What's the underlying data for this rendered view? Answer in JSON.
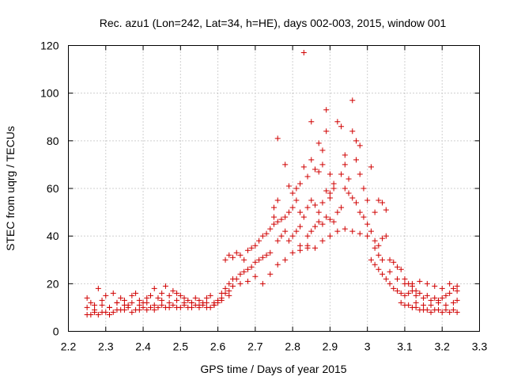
{
  "chart_data": {
    "type": "scatter",
    "title": "Rec. azu1 (Lon=242, Lat=34, h=HE), days 002-003, 2015, window 001",
    "xlabel": "GPS time / Days of year 2015",
    "ylabel": "STEC from uqrg / TECUs",
    "xlim": [
      2.2,
      3.3
    ],
    "ylim": [
      0,
      120
    ],
    "x_ticks": [
      "2.2",
      "2.3",
      "2.4",
      "2.5",
      "2.6",
      "2.7",
      "2.8",
      "2.9",
      "3",
      "3.1",
      "3.2",
      "3.3"
    ],
    "y_ticks": [
      "0",
      "20",
      "40",
      "60",
      "80",
      "100",
      "120"
    ],
    "grid": true,
    "marker": "plus",
    "color": "#d00000",
    "series": [
      {
        "name": "STEC",
        "points": [
          [
            2.25,
            14
          ],
          [
            2.26,
            12
          ],
          [
            2.27,
            11
          ],
          [
            2.28,
            18
          ],
          [
            2.29,
            13
          ],
          [
            2.3,
            15
          ],
          [
            2.31,
            10
          ],
          [
            2.32,
            16
          ],
          [
            2.33,
            12
          ],
          [
            2.34,
            14
          ],
          [
            2.35,
            13
          ],
          [
            2.36,
            11
          ],
          [
            2.37,
            15
          ],
          [
            2.38,
            16
          ],
          [
            2.39,
            13
          ],
          [
            2.4,
            12
          ],
          [
            2.41,
            14
          ],
          [
            2.42,
            15
          ],
          [
            2.43,
            18
          ],
          [
            2.44,
            14
          ],
          [
            2.45,
            16
          ],
          [
            2.46,
            19
          ],
          [
            2.47,
            15
          ],
          [
            2.48,
            17
          ],
          [
            2.49,
            16
          ],
          [
            2.5,
            15
          ],
          [
            2.51,
            14
          ],
          [
            2.52,
            13
          ],
          [
            2.53,
            12
          ],
          [
            2.54,
            14
          ],
          [
            2.55,
            13
          ],
          [
            2.56,
            12
          ],
          [
            2.57,
            14
          ],
          [
            2.58,
            15
          ],
          [
            2.59,
            12
          ],
          [
            2.6,
            13
          ],
          [
            2.61,
            16
          ],
          [
            2.62,
            18
          ],
          [
            2.63,
            20
          ],
          [
            2.64,
            22
          ],
          [
            2.25,
            7
          ],
          [
            2.26,
            7
          ],
          [
            2.27,
            8
          ],
          [
            2.28,
            7
          ],
          [
            2.29,
            8
          ],
          [
            2.3,
            8
          ],
          [
            2.31,
            7
          ],
          [
            2.32,
            8
          ],
          [
            2.33,
            9
          ],
          [
            2.34,
            9
          ],
          [
            2.35,
            9
          ],
          [
            2.36,
            10
          ],
          [
            2.37,
            8
          ],
          [
            2.38,
            9
          ],
          [
            2.39,
            9
          ],
          [
            2.4,
            10
          ],
          [
            2.41,
            9
          ],
          [
            2.42,
            10
          ],
          [
            2.43,
            9
          ],
          [
            2.44,
            10
          ],
          [
            2.45,
            11
          ],
          [
            2.46,
            10
          ],
          [
            2.47,
            10
          ],
          [
            2.48,
            11
          ],
          [
            2.49,
            10
          ],
          [
            2.5,
            10
          ],
          [
            2.51,
            11
          ],
          [
            2.52,
            10
          ],
          [
            2.53,
            10
          ],
          [
            2.54,
            11
          ],
          [
            2.55,
            10
          ],
          [
            2.56,
            11
          ],
          [
            2.57,
            10
          ],
          [
            2.58,
            10
          ],
          [
            2.59,
            11
          ],
          [
            2.6,
            12
          ],
          [
            2.61,
            14
          ],
          [
            2.62,
            16
          ],
          [
            2.63,
            17
          ],
          [
            2.64,
            19
          ],
          [
            2.25,
            10
          ],
          [
            2.27,
            9
          ],
          [
            2.29,
            11
          ],
          [
            2.31,
            10
          ],
          [
            2.33,
            12
          ],
          [
            2.35,
            11
          ],
          [
            2.37,
            12
          ],
          [
            2.39,
            11
          ],
          [
            2.41,
            12
          ],
          [
            2.43,
            11
          ],
          [
            2.45,
            13
          ],
          [
            2.47,
            12
          ],
          [
            2.49,
            13
          ],
          [
            2.51,
            12
          ],
          [
            2.53,
            12
          ],
          [
            2.55,
            11
          ],
          [
            2.57,
            12
          ],
          [
            2.59,
            11
          ],
          [
            2.61,
            13
          ],
          [
            2.63,
            15
          ],
          [
            2.62,
            30
          ],
          [
            2.63,
            32
          ],
          [
            2.64,
            31
          ],
          [
            2.65,
            33
          ],
          [
            2.66,
            32
          ],
          [
            2.67,
            30
          ],
          [
            2.68,
            34
          ],
          [
            2.69,
            35
          ],
          [
            2.7,
            36
          ],
          [
            2.71,
            38
          ],
          [
            2.72,
            40
          ],
          [
            2.73,
            41
          ],
          [
            2.74,
            43
          ],
          [
            2.75,
            45
          ],
          [
            2.76,
            46
          ],
          [
            2.77,
            47
          ],
          [
            2.78,
            48
          ],
          [
            2.79,
            50
          ],
          [
            2.8,
            52
          ],
          [
            2.81,
            55
          ],
          [
            2.65,
            22
          ],
          [
            2.66,
            24
          ],
          [
            2.67,
            25
          ],
          [
            2.68,
            26
          ],
          [
            2.69,
            27
          ],
          [
            2.7,
            29
          ],
          [
            2.71,
            30
          ],
          [
            2.72,
            31
          ],
          [
            2.73,
            32
          ],
          [
            2.74,
            33
          ],
          [
            2.75,
            48
          ],
          [
            2.75,
            52
          ],
          [
            2.76,
            55
          ],
          [
            2.76,
            38
          ],
          [
            2.77,
            40
          ],
          [
            2.78,
            42
          ],
          [
            2.79,
            38
          ],
          [
            2.8,
            40
          ],
          [
            2.81,
            42
          ],
          [
            2.82,
            44
          ],
          [
            2.66,
            20
          ],
          [
            2.68,
            21
          ],
          [
            2.7,
            23
          ],
          [
            2.72,
            20
          ],
          [
            2.74,
            24
          ],
          [
            2.76,
            28
          ],
          [
            2.78,
            30
          ],
          [
            2.8,
            33
          ],
          [
            2.82,
            36
          ],
          [
            2.84,
            35
          ],
          [
            2.76,
            81
          ],
          [
            2.78,
            70
          ],
          [
            2.79,
            61
          ],
          [
            2.8,
            58
          ],
          [
            2.81,
            60
          ],
          [
            2.82,
            62
          ],
          [
            2.83,
            117
          ],
          [
            2.83,
            69
          ],
          [
            2.84,
            65
          ],
          [
            2.85,
            88
          ],
          [
            2.85,
            72
          ],
          [
            2.86,
            68
          ],
          [
            2.87,
            67
          ],
          [
            2.87,
            79
          ],
          [
            2.88,
            76
          ],
          [
            2.88,
            70
          ],
          [
            2.89,
            93
          ],
          [
            2.89,
            84
          ],
          [
            2.9,
            66
          ],
          [
            2.9,
            58
          ],
          [
            2.82,
            50
          ],
          [
            2.83,
            48
          ],
          [
            2.84,
            52
          ],
          [
            2.85,
            55
          ],
          [
            2.86,
            53
          ],
          [
            2.87,
            50
          ],
          [
            2.88,
            54
          ],
          [
            2.89,
            59
          ],
          [
            2.9,
            56
          ],
          [
            2.91,
            62
          ],
          [
            2.84,
            40
          ],
          [
            2.85,
            42
          ],
          [
            2.86,
            44
          ],
          [
            2.87,
            46
          ],
          [
            2.88,
            45
          ],
          [
            2.89,
            48
          ],
          [
            2.9,
            47
          ],
          [
            2.91,
            46
          ],
          [
            2.92,
            50
          ],
          [
            2.93,
            52
          ],
          [
            2.82,
            34
          ],
          [
            2.84,
            36
          ],
          [
            2.86,
            35
          ],
          [
            2.88,
            38
          ],
          [
            2.9,
            40
          ],
          [
            2.92,
            42
          ],
          [
            2.94,
            43
          ],
          [
            2.96,
            42
          ],
          [
            2.98,
            41
          ],
          [
            3.0,
            40
          ],
          [
            2.91,
            60
          ],
          [
            2.92,
            88
          ],
          [
            2.93,
            86
          ],
          [
            2.93,
            66
          ],
          [
            2.94,
            74
          ],
          [
            2.94,
            70
          ],
          [
            2.95,
            64
          ],
          [
            2.96,
            97
          ],
          [
            2.96,
            84
          ],
          [
            2.97,
            80
          ],
          [
            2.97,
            72
          ],
          [
            2.98,
            78
          ],
          [
            2.98,
            66
          ],
          [
            2.99,
            60
          ],
          [
            3.0,
            55
          ],
          [
            3.01,
            69
          ],
          [
            3.02,
            50
          ],
          [
            3.03,
            55
          ],
          [
            3.04,
            54
          ],
          [
            3.05,
            51
          ],
          [
            2.94,
            60
          ],
          [
            2.95,
            58
          ],
          [
            2.96,
            56
          ],
          [
            2.97,
            54
          ],
          [
            2.98,
            50
          ],
          [
            2.99,
            48
          ],
          [
            3.0,
            45
          ],
          [
            3.01,
            42
          ],
          [
            3.02,
            38
          ],
          [
            3.03,
            36
          ],
          [
            3.04,
            39
          ],
          [
            3.05,
            40
          ],
          [
            3.06,
            30
          ],
          [
            3.07,
            29
          ],
          [
            3.08,
            27
          ],
          [
            3.09,
            26
          ],
          [
            3.1,
            22
          ],
          [
            3.11,
            20
          ],
          [
            3.12,
            19
          ],
          [
            3.13,
            17
          ],
          [
            3.01,
            30
          ],
          [
            3.02,
            28
          ],
          [
            3.03,
            26
          ],
          [
            3.04,
            24
          ],
          [
            3.05,
            22
          ],
          [
            3.06,
            20
          ],
          [
            3.07,
            18
          ],
          [
            3.08,
            17
          ],
          [
            3.09,
            16
          ],
          [
            3.1,
            15
          ],
          [
            3.02,
            35
          ],
          [
            3.03,
            32
          ],
          [
            3.04,
            30
          ],
          [
            3.06,
            25
          ],
          [
            3.08,
            22
          ],
          [
            3.1,
            20
          ],
          [
            3.12,
            17
          ],
          [
            3.14,
            16
          ],
          [
            3.16,
            15
          ],
          [
            3.18,
            14
          ],
          [
            3.09,
            12
          ],
          [
            3.1,
            11
          ],
          [
            3.11,
            11
          ],
          [
            3.12,
            10
          ],
          [
            3.13,
            10
          ],
          [
            3.14,
            9
          ],
          [
            3.15,
            9
          ],
          [
            3.16,
            9
          ],
          [
            3.17,
            8
          ],
          [
            3.18,
            9
          ],
          [
            3.19,
            9
          ],
          [
            3.2,
            8
          ],
          [
            3.21,
            9
          ],
          [
            3.22,
            8
          ],
          [
            3.23,
            9
          ],
          [
            3.24,
            8
          ],
          [
            3.11,
            16
          ],
          [
            3.13,
            15
          ],
          [
            3.15,
            14
          ],
          [
            3.17,
            13
          ],
          [
            3.19,
            13
          ],
          [
            3.2,
            14
          ],
          [
            3.21,
            15
          ],
          [
            3.22,
            16
          ],
          [
            3.23,
            18
          ],
          [
            3.24,
            19
          ],
          [
            3.12,
            20
          ],
          [
            3.14,
            21
          ],
          [
            3.16,
            20
          ],
          [
            3.18,
            19
          ],
          [
            3.2,
            18
          ],
          [
            3.22,
            20
          ],
          [
            3.24,
            17
          ],
          [
            3.13,
            12
          ],
          [
            3.15,
            11
          ],
          [
            3.17,
            11
          ],
          [
            3.19,
            12
          ],
          [
            3.21,
            11
          ],
          [
            3.23,
            12
          ],
          [
            3.24,
            13
          ]
        ]
      }
    ]
  }
}
